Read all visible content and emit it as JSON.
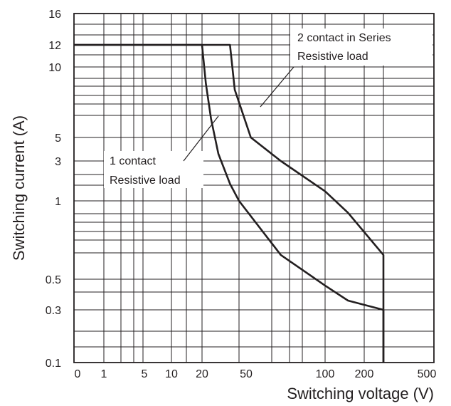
{
  "chart_data": {
    "type": "line",
    "title": "",
    "xlabel": "Switching voltage (V)",
    "ylabel": "Switching current (A)",
    "x_ticks": [
      "0",
      "1",
      "5",
      "10",
      "20",
      "50",
      "100",
      "200",
      "500"
    ],
    "y_ticks": [
      "0.1",
      "0.3",
      "0.5",
      "1",
      "3",
      "5",
      "10",
      "12",
      "16"
    ],
    "grid": true,
    "series": [
      {
        "name": "1 contact Resistive load",
        "points": [
          [
            0,
            12
          ],
          [
            20,
            12
          ],
          [
            22,
            8.5
          ],
          [
            25,
            6
          ],
          [
            30,
            3.5
          ],
          [
            40,
            1.6
          ],
          [
            50,
            1.0
          ],
          [
            70,
            0.62
          ],
          [
            100,
            0.45
          ],
          [
            150,
            0.35
          ],
          [
            250,
            0.3
          ],
          [
            250,
            0.1
          ]
        ]
      },
      {
        "name": "2 contact in Series Resistive load",
        "points": [
          [
            0,
            12
          ],
          [
            40,
            12
          ],
          [
            45,
            8
          ],
          [
            55,
            5
          ],
          [
            70,
            3
          ],
          [
            100,
            1.3
          ],
          [
            150,
            0.9
          ],
          [
            250,
            0.62
          ],
          [
            250,
            0.1
          ]
        ]
      }
    ],
    "annotations": [
      {
        "lines": [
          "2 contact in Series",
          "Resistive load"
        ]
      },
      {
        "lines": [
          "1 contact",
          "Resistive load"
        ]
      }
    ]
  }
}
